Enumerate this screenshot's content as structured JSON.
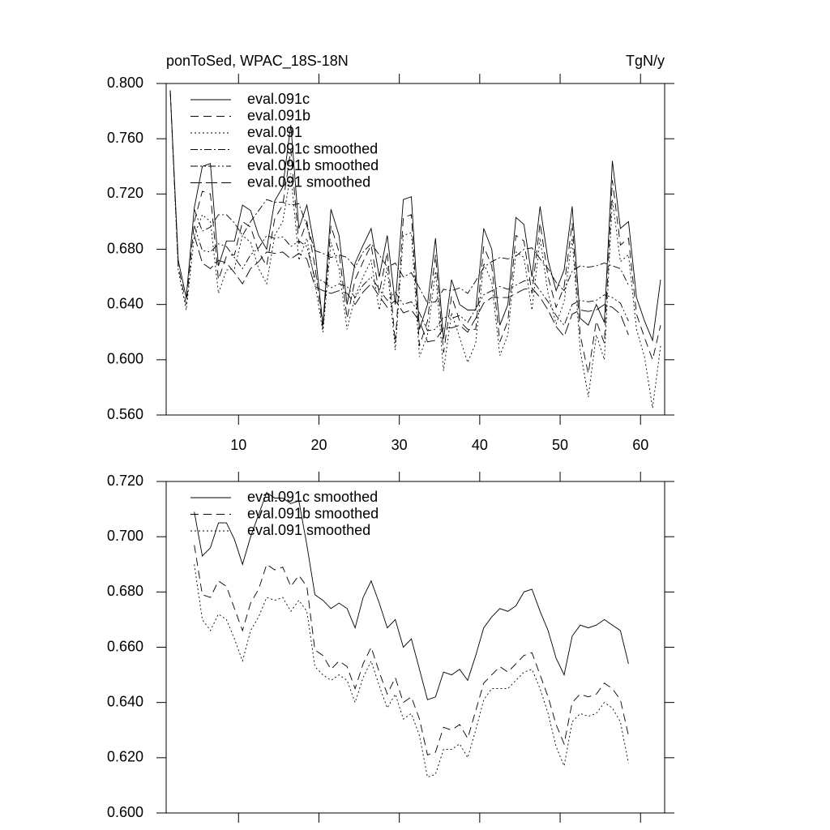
{
  "chart_data": [
    {
      "type": "line",
      "title": "ponToSed, WPAC_18S-18N",
      "right_title": "TgN/y",
      "xlim": [
        1,
        63
      ],
      "xticks": [
        10,
        20,
        30,
        40,
        50,
        60
      ],
      "ylim": [
        0.56,
        0.8
      ],
      "yticks": [
        {
          "value": 0.56,
          "label": "0.560"
        },
        {
          "value": 0.6,
          "label": "0.600"
        },
        {
          "value": 0.64,
          "label": "0.640"
        },
        {
          "value": 0.68,
          "label": "0.680"
        },
        {
          "value": 0.72,
          "label": "0.720"
        },
        {
          "value": 0.76,
          "label": "0.760"
        },
        {
          "value": 0.8,
          "label": "0.800"
        }
      ],
      "x": [
        1.5,
        2.5,
        3.5,
        4.5,
        5.5,
        6.5,
        7.5,
        8.5,
        9.5,
        10.5,
        11.5,
        12.5,
        13.5,
        14.5,
        15.5,
        16.5,
        17.5,
        18.5,
        19.5,
        20.5,
        21.5,
        22.5,
        23.5,
        24.5,
        25.5,
        26.5,
        27.5,
        28.5,
        29.5,
        30.5,
        31.5,
        32.5,
        33.5,
        34.5,
        35.5,
        36.5,
        37.5,
        38.5,
        39.5,
        40.5,
        41.5,
        42.5,
        43.5,
        44.5,
        45.5,
        46.5,
        47.5,
        48.5,
        49.5,
        50.5,
        51.5,
        52.5,
        53.5,
        54.5,
        55.5,
        56.5,
        57.5,
        58.5,
        59.5,
        60.5,
        61.5,
        62.5
      ],
      "series": [
        {
          "name": "eval.091c",
          "color": "#000000",
          "dash": "solid",
          "values": [
            0.795,
            0.672,
            0.645,
            0.71,
            0.74,
            0.742,
            0.668,
            0.686,
            0.686,
            0.712,
            0.708,
            0.69,
            0.68,
            0.715,
            0.725,
            0.77,
            0.695,
            0.712,
            0.68,
            0.625,
            0.709,
            0.69,
            0.64,
            0.67,
            0.683,
            0.695,
            0.66,
            0.69,
            0.64,
            0.716,
            0.718,
            0.622,
            0.64,
            0.688,
            0.615,
            0.658,
            0.64,
            0.636,
            0.636,
            0.695,
            0.68,
            0.625,
            0.64,
            0.703,
            0.698,
            0.66,
            0.711,
            0.672,
            0.65,
            0.665,
            0.711,
            0.63,
            0.625,
            0.64,
            0.627,
            0.744,
            0.695,
            0.7,
            0.645,
            0.628,
            0.614,
            0.658
          ]
        },
        {
          "name": "eval.091b",
          "color": "#000000",
          "dash": "dashed",
          "values": [
            0.795,
            0.668,
            0.64,
            0.7,
            0.722,
            0.72,
            0.658,
            0.675,
            0.676,
            0.7,
            0.696,
            0.678,
            0.668,
            0.702,
            0.712,
            0.752,
            0.684,
            0.7,
            0.668,
            0.622,
            0.697,
            0.678,
            0.63,
            0.658,
            0.671,
            0.683,
            0.648,
            0.678,
            0.612,
            0.703,
            0.705,
            0.61,
            0.628,
            0.676,
            0.605,
            0.646,
            0.628,
            0.622,
            0.622,
            0.682,
            0.668,
            0.613,
            0.628,
            0.69,
            0.686,
            0.648,
            0.699,
            0.66,
            0.638,
            0.653,
            0.699,
            0.618,
            0.59,
            0.628,
            0.612,
            0.73,
            0.683,
            0.688,
            0.633,
            0.616,
            0.6,
            0.625
          ]
        },
        {
          "name": "eval.091",
          "color": "#000000",
          "dash": "dotted",
          "values": [
            0.795,
            0.665,
            0.636,
            0.69,
            0.705,
            0.7,
            0.648,
            0.665,
            0.666,
            0.69,
            0.685,
            0.666,
            0.655,
            0.69,
            0.7,
            0.735,
            0.672,
            0.688,
            0.656,
            0.62,
            0.685,
            0.666,
            0.622,
            0.646,
            0.66,
            0.672,
            0.636,
            0.667,
            0.607,
            0.69,
            0.692,
            0.602,
            0.618,
            0.664,
            0.592,
            0.634,
            0.616,
            0.598,
            0.612,
            0.67,
            0.656,
            0.603,
            0.618,
            0.678,
            0.674,
            0.636,
            0.688,
            0.648,
            0.626,
            0.642,
            0.688,
            0.607,
            0.573,
            0.618,
            0.6,
            0.716,
            0.671,
            0.676,
            0.622,
            0.602,
            0.565,
            0.61
          ]
        },
        {
          "name": "eval.091c smoothed",
          "color": "#000000",
          "dash": "dashdot",
          "x": [
            4.5,
            5.5,
            6.5,
            7.5,
            8.5,
            9.5,
            10.5,
            11.5,
            12.5,
            13.5,
            14.5,
            15.5,
            16.5,
            17.5,
            18.5,
            19.5,
            20.5,
            21.5,
            22.5,
            23.5,
            24.5,
            25.5,
            26.5,
            27.5,
            28.5,
            29.5,
            30.5,
            31.5,
            32.5,
            33.5,
            34.5,
            35.5,
            36.5,
            37.5,
            38.5,
            39.5,
            40.5,
            41.5,
            42.5,
            43.5,
            44.5,
            45.5,
            46.5,
            47.5,
            48.5,
            49.5,
            50.5,
            51.5,
            52.5,
            53.5,
            54.5,
            55.5,
            56.5,
            57.5,
            58.5
          ],
          "values": [
            0.709,
            0.693,
            0.696,
            0.705,
            0.705,
            0.699,
            0.69,
            0.7,
            0.708,
            0.716,
            0.714,
            0.714,
            0.712,
            0.713,
            0.697,
            0.679,
            0.677,
            0.674,
            0.676,
            0.674,
            0.667,
            0.678,
            0.684,
            0.676,
            0.667,
            0.67,
            0.66,
            0.663,
            0.652,
            0.641,
            0.642,
            0.651,
            0.65,
            0.652,
            0.648,
            0.657,
            0.667,
            0.671,
            0.674,
            0.673,
            0.675,
            0.68,
            0.681,
            0.673,
            0.666,
            0.656,
            0.65,
            0.664,
            0.668,
            0.667,
            0.668,
            0.67,
            0.668,
            0.666,
            0.654
          ]
        },
        {
          "name": "eval.091b smoothed",
          "color": "#000000",
          "dash": "dashdotdot",
          "x": [
            4.5,
            5.5,
            6.5,
            7.5,
            8.5,
            9.5,
            10.5,
            11.5,
            12.5,
            13.5,
            14.5,
            15.5,
            16.5,
            17.5,
            18.5,
            19.5,
            20.5,
            21.5,
            22.5,
            23.5,
            24.5,
            25.5,
            26.5,
            27.5,
            28.5,
            29.5,
            30.5,
            31.5,
            32.5,
            33.5,
            34.5,
            35.5,
            36.5,
            37.5,
            38.5,
            39.5,
            40.5,
            41.5,
            42.5,
            43.5,
            44.5,
            45.5,
            46.5,
            47.5,
            48.5,
            49.5,
            50.5,
            51.5,
            52.5,
            53.5,
            54.5,
            55.5,
            56.5,
            57.5,
            58.5
          ],
          "values": [
            0.697,
            0.679,
            0.678,
            0.684,
            0.682,
            0.674,
            0.666,
            0.676,
            0.681,
            0.69,
            0.688,
            0.689,
            0.682,
            0.686,
            0.682,
            0.659,
            0.657,
            0.652,
            0.655,
            0.653,
            0.645,
            0.654,
            0.66,
            0.651,
            0.643,
            0.649,
            0.64,
            0.642,
            0.634,
            0.621,
            0.622,
            0.631,
            0.63,
            0.632,
            0.627,
            0.637,
            0.647,
            0.65,
            0.653,
            0.651,
            0.654,
            0.657,
            0.658,
            0.65,
            0.642,
            0.632,
            0.625,
            0.64,
            0.643,
            0.642,
            0.643,
            0.647,
            0.645,
            0.641,
            0.628
          ]
        },
        {
          "name": "eval.091 smoothed",
          "color": "#000000",
          "dash": "longdash",
          "x": [
            4.5,
            5.5,
            6.5,
            7.5,
            8.5,
            9.5,
            10.5,
            11.5,
            12.5,
            13.5,
            14.5,
            15.5,
            16.5,
            17.5,
            18.5,
            19.5,
            20.5,
            21.5,
            22.5,
            23.5,
            24.5,
            25.5,
            26.5,
            27.5,
            28.5,
            29.5,
            30.5,
            31.5,
            32.5,
            33.5,
            34.5,
            35.5,
            36.5,
            37.5,
            38.5,
            39.5,
            40.5,
            41.5,
            42.5,
            43.5,
            44.5,
            45.5,
            46.5,
            47.5,
            48.5,
            49.5,
            50.5,
            51.5,
            52.5,
            53.5,
            54.5,
            55.5,
            56.5,
            57.5,
            58.5
          ],
          "values": [
            0.69,
            0.67,
            0.666,
            0.672,
            0.67,
            0.663,
            0.655,
            0.666,
            0.671,
            0.678,
            0.677,
            0.678,
            0.673,
            0.677,
            0.673,
            0.653,
            0.65,
            0.648,
            0.65,
            0.648,
            0.64,
            0.649,
            0.655,
            0.646,
            0.638,
            0.643,
            0.634,
            0.636,
            0.628,
            0.613,
            0.614,
            0.623,
            0.623,
            0.625,
            0.62,
            0.63,
            0.641,
            0.645,
            0.645,
            0.645,
            0.648,
            0.651,
            0.652,
            0.645,
            0.636,
            0.624,
            0.617,
            0.633,
            0.636,
            0.635,
            0.636,
            0.64,
            0.638,
            0.633,
            0.618
          ]
        }
      ]
    },
    {
      "type": "line",
      "xlim": [
        1,
        63
      ],
      "xticks": [
        10,
        20,
        30,
        40,
        50,
        60
      ],
      "ylim": [
        0.6,
        0.72
      ],
      "yticks": [
        {
          "value": 0.6,
          "label": "0.600"
        },
        {
          "value": 0.62,
          "label": "0.620"
        },
        {
          "value": 0.64,
          "label": "0.640"
        },
        {
          "value": 0.66,
          "label": "0.660"
        },
        {
          "value": 0.68,
          "label": "0.680"
        },
        {
          "value": 0.7,
          "label": "0.700"
        },
        {
          "value": 0.72,
          "label": "0.720"
        }
      ],
      "x": [
        4.5,
        5.5,
        6.5,
        7.5,
        8.5,
        9.5,
        10.5,
        11.5,
        12.5,
        13.5,
        14.5,
        15.5,
        16.5,
        17.5,
        18.5,
        19.5,
        20.5,
        21.5,
        22.5,
        23.5,
        24.5,
        25.5,
        26.5,
        27.5,
        28.5,
        29.5,
        30.5,
        31.5,
        32.5,
        33.5,
        34.5,
        35.5,
        36.5,
        37.5,
        38.5,
        39.5,
        40.5,
        41.5,
        42.5,
        43.5,
        44.5,
        45.5,
        46.5,
        47.5,
        48.5,
        49.5,
        50.5,
        51.5,
        52.5,
        53.5,
        54.5,
        55.5,
        56.5,
        57.5,
        58.5
      ],
      "series": [
        {
          "name": "eval.091c smoothed",
          "color": "#000000",
          "dash": "solid",
          "values": [
            0.709,
            0.693,
            0.696,
            0.705,
            0.705,
            0.699,
            0.69,
            0.7,
            0.708,
            0.716,
            0.714,
            0.714,
            0.712,
            0.713,
            0.697,
            0.679,
            0.677,
            0.674,
            0.676,
            0.674,
            0.667,
            0.678,
            0.684,
            0.676,
            0.667,
            0.67,
            0.66,
            0.663,
            0.652,
            0.641,
            0.642,
            0.651,
            0.65,
            0.652,
            0.648,
            0.657,
            0.667,
            0.671,
            0.674,
            0.673,
            0.675,
            0.68,
            0.681,
            0.673,
            0.666,
            0.656,
            0.65,
            0.664,
            0.668,
            0.667,
            0.668,
            0.67,
            0.668,
            0.666,
            0.654
          ]
        },
        {
          "name": "eval.091b smoothed",
          "color": "#000000",
          "dash": "dashed",
          "values": [
            0.697,
            0.679,
            0.678,
            0.684,
            0.682,
            0.674,
            0.666,
            0.676,
            0.681,
            0.69,
            0.688,
            0.689,
            0.682,
            0.686,
            0.682,
            0.659,
            0.657,
            0.652,
            0.655,
            0.653,
            0.645,
            0.654,
            0.66,
            0.651,
            0.643,
            0.649,
            0.64,
            0.642,
            0.634,
            0.621,
            0.622,
            0.631,
            0.63,
            0.632,
            0.627,
            0.637,
            0.647,
            0.65,
            0.653,
            0.651,
            0.654,
            0.657,
            0.658,
            0.65,
            0.642,
            0.632,
            0.625,
            0.64,
            0.643,
            0.642,
            0.643,
            0.647,
            0.645,
            0.641,
            0.628
          ]
        },
        {
          "name": "eval.091 smoothed",
          "color": "#000000",
          "dash": "dotted",
          "values": [
            0.69,
            0.67,
            0.666,
            0.672,
            0.67,
            0.663,
            0.655,
            0.666,
            0.671,
            0.678,
            0.677,
            0.678,
            0.673,
            0.677,
            0.673,
            0.653,
            0.65,
            0.648,
            0.65,
            0.648,
            0.64,
            0.649,
            0.655,
            0.646,
            0.638,
            0.643,
            0.634,
            0.636,
            0.628,
            0.613,
            0.614,
            0.623,
            0.623,
            0.625,
            0.62,
            0.63,
            0.641,
            0.645,
            0.645,
            0.645,
            0.648,
            0.651,
            0.652,
            0.645,
            0.636,
            0.624,
            0.617,
            0.633,
            0.636,
            0.635,
            0.636,
            0.64,
            0.638,
            0.633,
            0.618
          ]
        }
      ]
    }
  ]
}
